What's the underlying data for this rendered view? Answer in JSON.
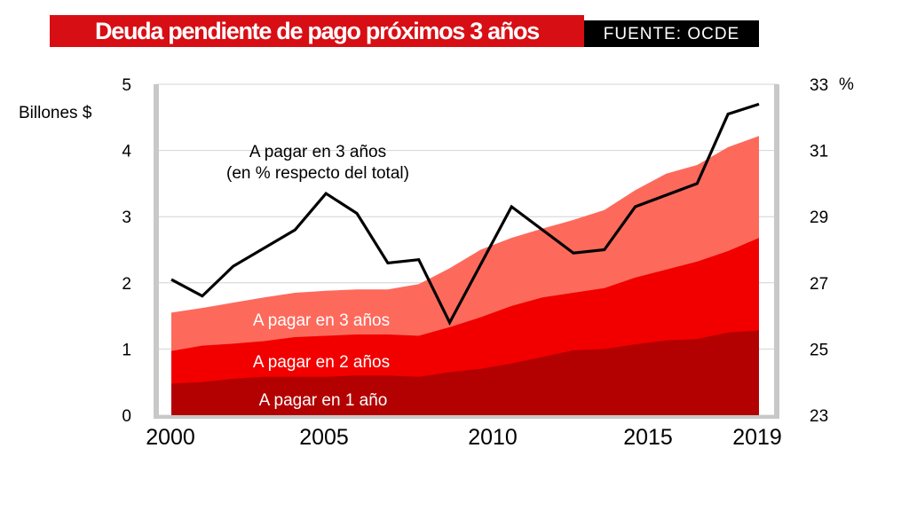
{
  "header": {
    "title": "Deuda pendiente de pago próximos 3 años",
    "source": "FUENTE: OCDE"
  },
  "chart_data": {
    "type": "area",
    "title": "Deuda pendiente de pago próximos 3 años",
    "ylabel_left": "Billones $",
    "ylabel_right": "%",
    "x_ticks": [
      "2000",
      "2005",
      "2010",
      "2015",
      "2019"
    ],
    "y_left_ticks": [
      "0",
      "1",
      "2",
      "3",
      "4",
      "5"
    ],
    "y_right_ticks": [
      "23",
      "25",
      "27",
      "29",
      "31",
      "33"
    ],
    "ylim_left": [
      0,
      5
    ],
    "ylim_right": [
      23,
      33
    ],
    "xlim": [
      2000,
      2019
    ],
    "stack_boundaries_x": [
      2000,
      2001,
      2002,
      2003,
      2004,
      2005,
      2006,
      2007,
      2008,
      2009,
      2010,
      2011,
      2012,
      2013,
      2014,
      2015,
      2016,
      2017,
      2018,
      2019
    ],
    "series": [
      {
        "name": "A pagar en 1 año",
        "color": "#b30000",
        "values": [
          0.48,
          0.5,
          0.55,
          0.58,
          0.58,
          0.58,
          0.6,
          0.6,
          0.58,
          0.65,
          0.7,
          0.78,
          0.88,
          0.98,
          1.0,
          1.07,
          1.13,
          1.15,
          1.25,
          1.28
        ]
      },
      {
        "name": "A pagar en 2 años",
        "color": "#f20000",
        "values": [
          0.97,
          1.05,
          1.08,
          1.12,
          1.18,
          1.2,
          1.22,
          1.22,
          1.2,
          1.33,
          1.48,
          1.65,
          1.78,
          1.85,
          1.92,
          2.08,
          2.2,
          2.32,
          2.48,
          2.68
        ]
      },
      {
        "name": "A pagar en 3 años",
        "color": "#fd6a5c",
        "values": [
          1.55,
          1.62,
          1.7,
          1.78,
          1.85,
          1.88,
          1.9,
          1.9,
          1.98,
          2.22,
          2.5,
          2.68,
          2.82,
          2.95,
          3.1,
          3.4,
          3.65,
          3.78,
          4.05,
          4.22
        ]
      }
    ],
    "line": {
      "name": "A pagar en 3 años",
      "label_line1": "A pagar en 3 años",
      "label_line2": "(en % respecto del total)",
      "axis": "right",
      "color": "#000000",
      "x": [
        2000,
        2001,
        2002,
        2004,
        2005,
        2006,
        2007,
        2008,
        2009,
        2011,
        2013,
        2014,
        2015,
        2017,
        2018,
        2019
      ],
      "values": [
        27.1,
        26.6,
        27.5,
        28.6,
        29.7,
        29.1,
        27.6,
        27.7,
        25.8,
        29.3,
        27.9,
        28.0,
        29.3,
        30.0,
        32.1,
        32.4
      ]
    },
    "colors": {
      "title_bg": "#d80e15",
      "source_bg": "#000000",
      "axis_bar": "#c8c8c8",
      "grid": "#d4d4d4"
    }
  }
}
